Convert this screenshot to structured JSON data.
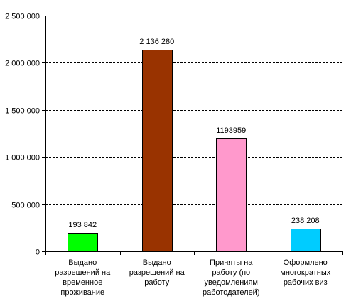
{
  "chart_data": {
    "type": "bar",
    "title": "",
    "xlabel": "",
    "ylabel": "",
    "ylim": [
      0,
      2500000
    ],
    "y_ticks": [
      0,
      500000,
      1000000,
      1500000,
      2000000,
      2500000
    ],
    "y_tick_labels": [
      "0",
      "500 000",
      "1 000 000",
      "1 500 000",
      "2 000 000",
      "2 500 000"
    ],
    "grid": true,
    "grid_style": "dashed",
    "legend": "none",
    "categories": [
      [
        "Выдано",
        "разрешений на",
        "временное",
        "проживание"
      ],
      [
        "Выдано",
        "разрешений на",
        "работу"
      ],
      [
        "Приняты  на",
        "работу (по",
        "уведомлениям",
        "работодателей)"
      ],
      [
        "Оформлено",
        "многократных",
        "рабочих виз"
      ]
    ],
    "values": [
      193842,
      2136280,
      1193959,
      238208
    ],
    "value_labels": [
      "193 842",
      "2 136 280",
      "1193959",
      "238 208"
    ],
    "colors": [
      "#00ff00",
      "#993300",
      "#ff99cc",
      "#00ccff"
    ]
  }
}
